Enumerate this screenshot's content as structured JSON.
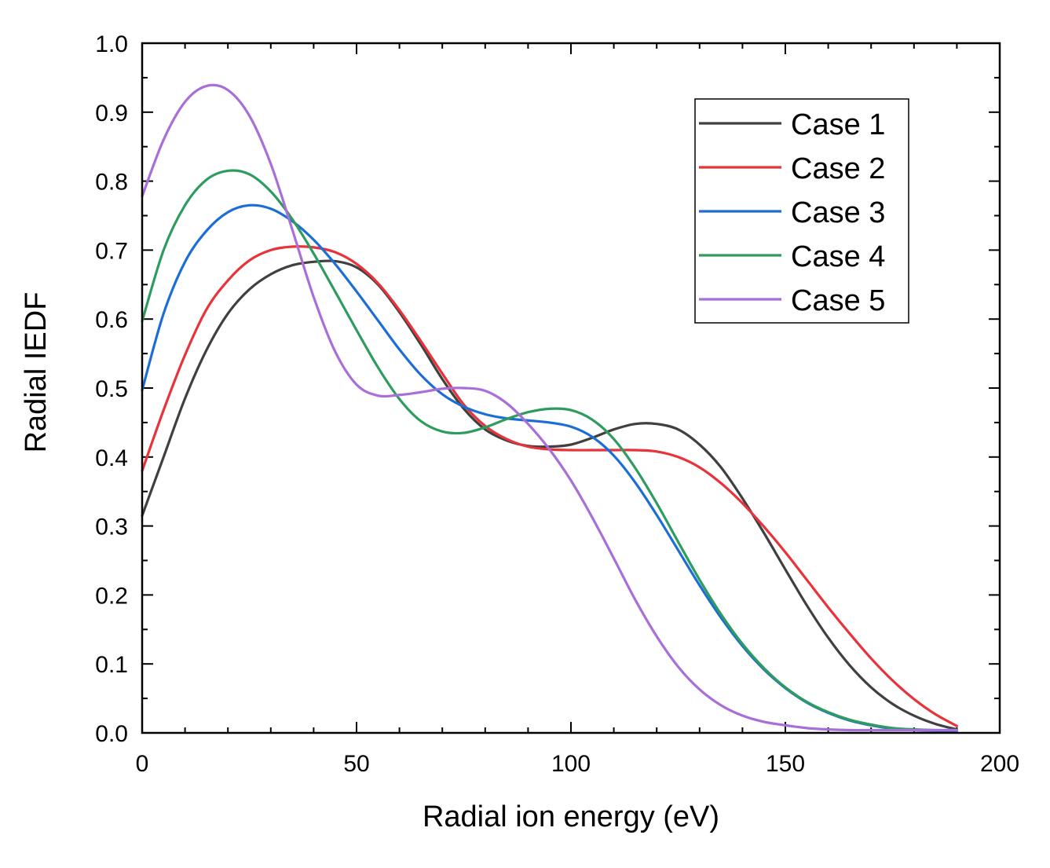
{
  "chart_data": {
    "type": "line",
    "title": "",
    "xlabel": "Radial ion energy (eV)",
    "ylabel": "Radial IEDF",
    "xlim": [
      0,
      200
    ],
    "ylim": [
      0,
      1.0
    ],
    "x_ticks": [
      0,
      50,
      100,
      150,
      200
    ],
    "x_tick_labels": [
      "0",
      "50",
      "100",
      "150",
      "200"
    ],
    "y_ticks": [
      0.0,
      0.1,
      0.2,
      0.3,
      0.4,
      0.5,
      0.6,
      0.7,
      0.8,
      0.9,
      1.0
    ],
    "y_tick_labels": [
      "0.0",
      "0.1",
      "0.2",
      "0.3",
      "0.4",
      "0.5",
      "0.6",
      "0.7",
      "0.8",
      "0.9",
      "1.0"
    ],
    "grid": false,
    "legend_position": "top-right",
    "x": [
      0,
      5,
      10,
      15,
      20,
      25,
      30,
      35,
      40,
      45,
      50,
      55,
      60,
      65,
      70,
      75,
      80,
      85,
      90,
      95,
      100,
      105,
      110,
      115,
      120,
      125,
      130,
      135,
      140,
      145,
      150,
      155,
      160,
      165,
      170,
      175,
      180,
      185,
      190
    ],
    "series": [
      {
        "name": "Case 1",
        "color": "#404040",
        "values": [
          0.315,
          0.4,
          0.485,
          0.555,
          0.608,
          0.643,
          0.665,
          0.678,
          0.683,
          0.684,
          0.675,
          0.65,
          0.61,
          0.563,
          0.513,
          0.47,
          0.44,
          0.424,
          0.416,
          0.415,
          0.418,
          0.428,
          0.44,
          0.448,
          0.448,
          0.44,
          0.418,
          0.385,
          0.34,
          0.29,
          0.237,
          0.185,
          0.138,
          0.098,
          0.066,
          0.042,
          0.025,
          0.013,
          0.005
        ]
      },
      {
        "name": "Case 2",
        "color": "#e8333a",
        "values": [
          0.38,
          0.468,
          0.548,
          0.614,
          0.656,
          0.685,
          0.7,
          0.705,
          0.704,
          0.697,
          0.68,
          0.652,
          0.613,
          0.568,
          0.521,
          0.476,
          0.445,
          0.426,
          0.415,
          0.411,
          0.41,
          0.41,
          0.41,
          0.41,
          0.408,
          0.4,
          0.385,
          0.362,
          0.333,
          0.299,
          0.262,
          0.222,
          0.182,
          0.144,
          0.108,
          0.076,
          0.049,
          0.027,
          0.01
        ]
      },
      {
        "name": "Case 3",
        "color": "#1c6ed6",
        "values": [
          0.497,
          0.608,
          0.683,
          0.728,
          0.755,
          0.765,
          0.76,
          0.742,
          0.715,
          0.68,
          0.64,
          0.598,
          0.556,
          0.519,
          0.491,
          0.473,
          0.462,
          0.456,
          0.453,
          0.45,
          0.444,
          0.429,
          0.402,
          0.363,
          0.316,
          0.265,
          0.214,
          0.167,
          0.126,
          0.092,
          0.065,
          0.044,
          0.029,
          0.018,
          0.011,
          0.006,
          0.004,
          0.003,
          0.003
        ]
      },
      {
        "name": "Case 4",
        "color": "#2e9c5e",
        "values": [
          0.597,
          0.7,
          0.765,
          0.802,
          0.815,
          0.81,
          0.785,
          0.745,
          0.695,
          0.64,
          0.584,
          0.53,
          0.484,
          0.452,
          0.437,
          0.435,
          0.443,
          0.455,
          0.465,
          0.47,
          0.468,
          0.454,
          0.426,
          0.384,
          0.333,
          0.277,
          0.222,
          0.172,
          0.129,
          0.094,
          0.066,
          0.045,
          0.03,
          0.019,
          0.012,
          0.007,
          0.005,
          0.004,
          0.004
        ]
      },
      {
        "name": "Case 5",
        "color": "#a86fd8",
        "values": [
          0.778,
          0.86,
          0.915,
          0.938,
          0.932,
          0.895,
          0.825,
          0.73,
          0.632,
          0.553,
          0.505,
          0.489,
          0.49,
          0.494,
          0.499,
          0.5,
          0.496,
          0.478,
          0.448,
          0.411,
          0.366,
          0.312,
          0.253,
          0.193,
          0.14,
          0.096,
          0.063,
          0.04,
          0.025,
          0.016,
          0.011,
          0.007,
          0.005,
          0.004,
          0.004,
          0.004,
          0.004,
          0.004,
          0.004
        ]
      }
    ]
  }
}
